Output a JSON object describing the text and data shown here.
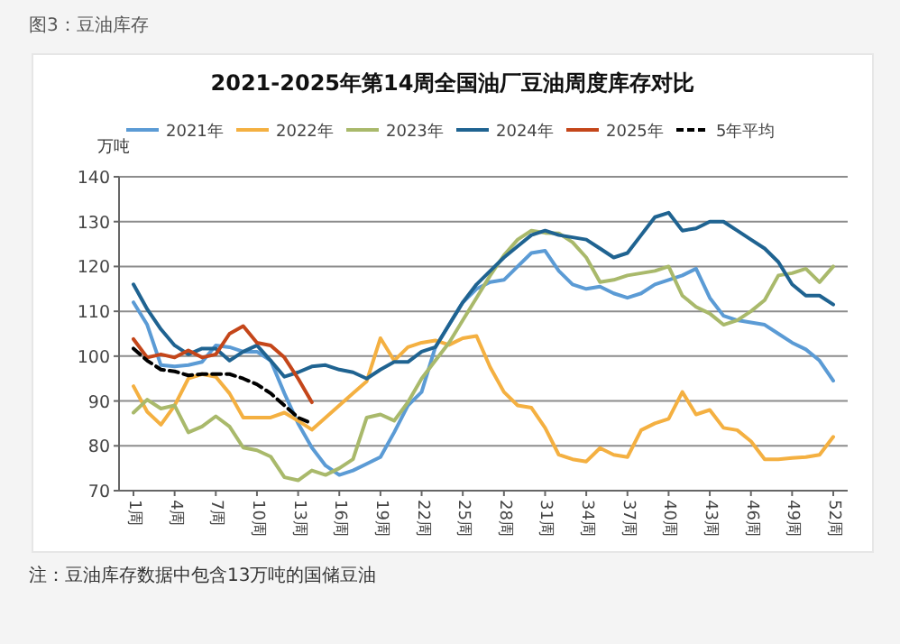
{
  "chart_data": {
    "type": "line",
    "title": "2021-2025年第14周全国油厂豆油周度库存对比",
    "ylabel": "万吨",
    "annotations": [
      "图3：豆油库存",
      "注：豆油库存数据中包含13万吨的国储豆油"
    ],
    "categories": [
      "1周",
      null,
      null,
      "4周",
      null,
      null,
      "7周",
      null,
      null,
      "10周",
      null,
      null,
      "13周",
      null,
      null,
      "16周",
      null,
      null,
      "19周",
      null,
      null,
      "22周",
      null,
      null,
      "25周",
      null,
      null,
      "28周",
      null,
      null,
      "31周",
      null,
      null,
      "34周",
      null,
      null,
      "37周",
      null,
      null,
      "40周",
      null,
      null,
      "43周",
      null,
      null,
      "46周",
      null,
      null,
      "49周",
      null,
      null,
      "52周"
    ],
    "ylim": [
      70,
      140
    ],
    "yticks": [
      70,
      80,
      90,
      100,
      110,
      120,
      130,
      140
    ],
    "grid": "y",
    "legend": "top",
    "series": [
      {
        "name": "2021年",
        "color": "#5b9bd5",
        "values": [
          112,
          107,
          98,
          97.7,
          98,
          98.7,
          102.4,
          102,
          101,
          101,
          99,
          91.7,
          85,
          79.6,
          75.6,
          73.5,
          74.5,
          76,
          77.5,
          83,
          89,
          92,
          102,
          107,
          112,
          115,
          116.5,
          117,
          120,
          123,
          123.5,
          119,
          116,
          115,
          115.5,
          114,
          113,
          114,
          116,
          117,
          118,
          119.5,
          113,
          109,
          108,
          107.5,
          107,
          105,
          103,
          101.5,
          99,
          94.5
        ]
      },
      {
        "name": "2022年",
        "color": "#f4b041",
        "values": [
          93.3,
          87.6,
          84.7,
          89,
          95,
          96,
          95.4,
          91.7,
          86.3,
          86.3,
          86.3,
          87.4,
          85.6,
          83.6,
          86.3,
          89,
          91.7,
          94.4,
          104,
          99,
          102,
          103,
          103.5,
          102.5,
          104,
          104.5,
          97.5,
          92,
          89,
          88.5,
          84,
          78,
          77,
          76.5,
          79.5,
          78,
          77.5,
          83.5,
          85,
          86,
          92,
          87,
          88,
          84,
          83.5,
          81,
          77,
          77,
          77.3,
          77.5,
          78,
          82
        ]
      },
      {
        "name": "2023年",
        "color": "#a9b96b",
        "values": [
          87.4,
          90.3,
          88.3,
          89,
          83,
          84.3,
          86.6,
          84.3,
          79.6,
          79,
          77.6,
          73,
          72.3,
          74.5,
          73.5,
          75,
          77,
          86.3,
          87,
          85.6,
          89.7,
          95,
          99,
          103,
          108,
          113,
          118,
          122.5,
          126,
          128,
          127.5,
          127.4,
          125.4,
          122,
          116.5,
          117,
          118,
          118.5,
          119,
          120,
          113.5,
          111,
          109.5,
          107,
          108,
          110,
          112.5,
          118,
          118.5,
          119.5,
          116.5,
          120
        ]
      },
      {
        "name": "2024年",
        "color": "#1f6391",
        "values": [
          116,
          110.5,
          106,
          102.4,
          100.4,
          101.7,
          101.7,
          99,
          101,
          102.4,
          99,
          95.4,
          96.4,
          97.7,
          98,
          97,
          96.4,
          95,
          97,
          98.7,
          98.7,
          101,
          102,
          107,
          112,
          116,
          119,
          122,
          124.5,
          127,
          128,
          127,
          126.5,
          126,
          124,
          122,
          123,
          127,
          131,
          132,
          128,
          128.5,
          130,
          130,
          128,
          126,
          124,
          121,
          116,
          113.5,
          113.5,
          111.5
        ]
      },
      {
        "name": "2025年",
        "color": "#c4461a",
        "values": [
          103.8,
          99.7,
          100.4,
          99.7,
          101.3,
          99.7,
          100.4,
          105,
          106.7,
          103,
          102.4,
          99.7,
          95,
          89.7,
          null,
          null,
          null,
          null,
          null,
          null,
          null,
          null,
          null,
          null,
          null,
          null,
          null,
          null,
          null,
          null,
          null,
          null,
          null,
          null,
          null,
          null,
          null,
          null,
          null,
          null,
          null,
          null,
          null,
          null,
          null,
          null,
          null,
          null,
          null,
          null,
          null,
          null
        ]
      },
      {
        "name": "5年平均",
        "color": "#000000",
        "line_style": "dashed",
        "values": [
          101.7,
          99,
          97,
          96.6,
          95.7,
          96,
          96,
          96,
          95,
          93.7,
          91.7,
          89,
          86.3,
          85,
          null,
          null,
          null,
          null,
          null,
          null,
          null,
          null,
          null,
          null,
          null,
          null,
          null,
          null,
          null,
          null,
          null,
          null,
          null,
          null,
          null,
          null,
          null,
          null,
          null,
          null,
          null,
          null,
          null,
          null,
          null,
          null,
          null,
          null,
          null,
          null,
          null,
          null
        ]
      }
    ]
  }
}
